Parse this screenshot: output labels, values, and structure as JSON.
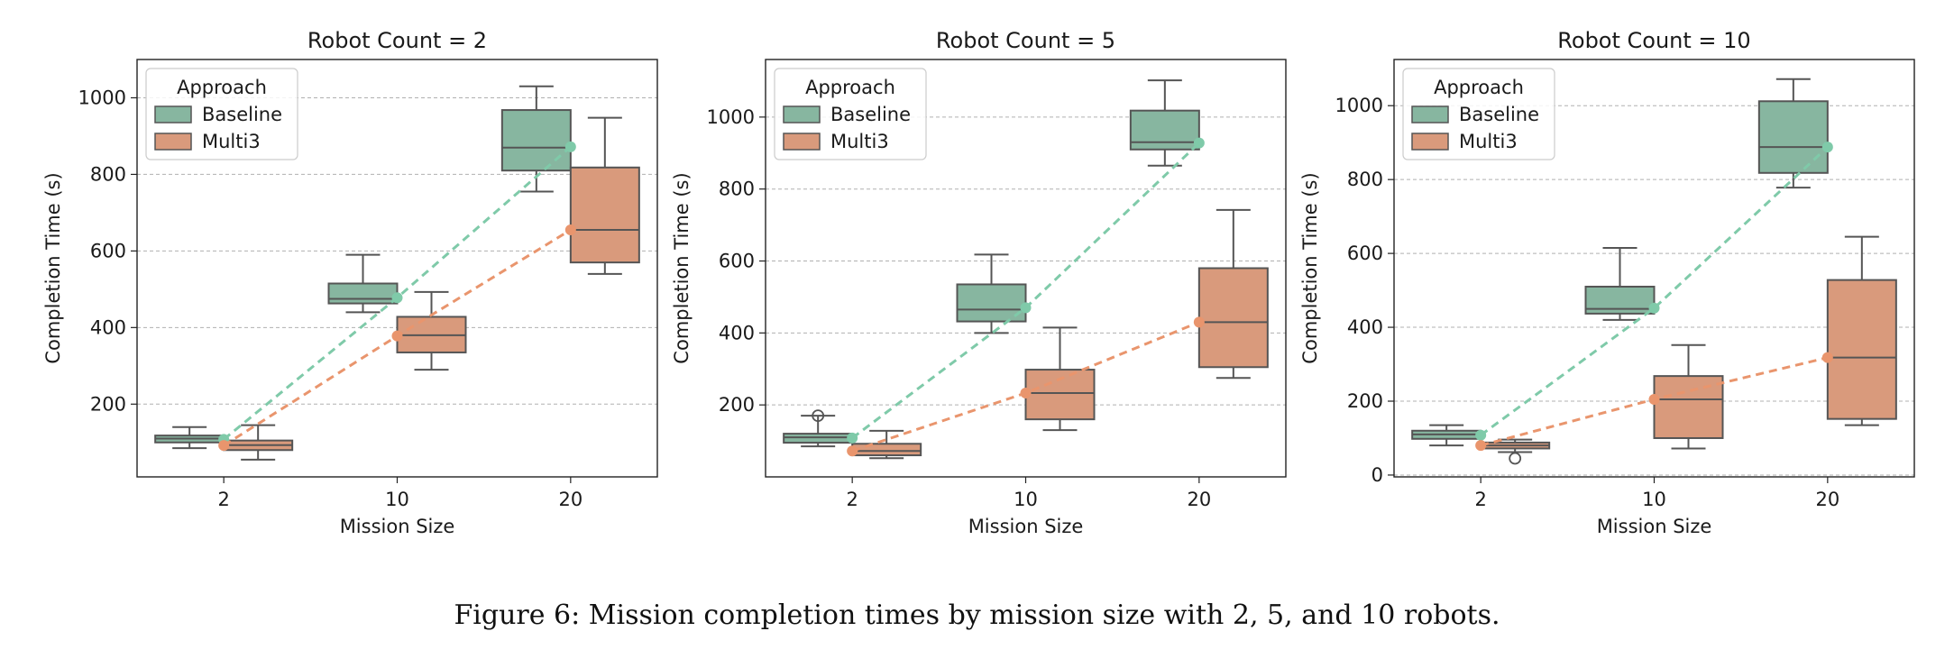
{
  "figure": {
    "caption": "Figure 6: Mission completion times by mission size with 2, 5, and 10 robots."
  },
  "colors": {
    "Baseline": "#87b6a0",
    "Multi3": "#d99a7c",
    "Baseline_line": "#7fcaa9",
    "Multi3_line": "#e9956d",
    "box_edge": "#555555",
    "grid": "#b0b0b0"
  },
  "chart_data": [
    {
      "type": "box",
      "title": "Robot Count = 2",
      "xlabel": "Mission Size",
      "ylabel": "Completion Time (s)",
      "categories": [
        "2",
        "10",
        "20"
      ],
      "ylim": [
        10,
        1100
      ],
      "yticks": [
        200,
        400,
        600,
        800,
        1000
      ],
      "grid": "y",
      "legend": {
        "title": "Approach",
        "placement": "top-left"
      },
      "series": [
        {
          "name": "Baseline",
          "boxes": [
            {
              "whislo": 85,
              "q1": 100,
              "med": 110,
              "q3": 118,
              "whishi": 140,
              "fliers": []
            },
            {
              "whislo": 440,
              "q1": 463,
              "med": 475,
              "q3": 515,
              "whishi": 590,
              "fliers": []
            },
            {
              "whislo": 755,
              "q1": 810,
              "med": 870,
              "q3": 968,
              "whishi": 1030,
              "fliers": []
            }
          ],
          "means": [
            108,
            478,
            872
          ]
        },
        {
          "name": "Multi3",
          "boxes": [
            {
              "whislo": 55,
              "q1": 80,
              "med": 93,
              "q3": 105,
              "whishi": 145,
              "fliers": []
            },
            {
              "whislo": 290,
              "q1": 335,
              "med": 380,
              "q3": 428,
              "whishi": 493,
              "fliers": []
            },
            {
              "whislo": 540,
              "q1": 570,
              "med": 655,
              "q3": 818,
              "whishi": 948,
              "fliers": []
            }
          ],
          "means": [
            92,
            378,
            655
          ]
        }
      ]
    },
    {
      "type": "box",
      "title": "Robot Count = 5",
      "xlabel": "Mission Size",
      "ylabel": "Completion Time (s)",
      "categories": [
        "2",
        "10",
        "20"
      ],
      "ylim": [
        0,
        1160
      ],
      "yticks": [
        200,
        400,
        600,
        800,
        1000
      ],
      "grid": "y",
      "legend": {
        "title": "Approach",
        "placement": "top-left"
      },
      "series": [
        {
          "name": "Baseline",
          "boxes": [
            {
              "whislo": 85,
              "q1": 95,
              "med": 110,
              "q3": 120,
              "whishi": 170,
              "fliers": [
                170
              ]
            },
            {
              "whislo": 400,
              "q1": 432,
              "med": 465,
              "q3": 535,
              "whishi": 618,
              "fliers": []
            },
            {
              "whislo": 865,
              "q1": 910,
              "med": 930,
              "q3": 1018,
              "whishi": 1102,
              "fliers": []
            }
          ],
          "means": [
            108,
            470,
            928
          ]
        },
        {
          "name": "Multi3",
          "boxes": [
            {
              "whislo": 52,
              "q1": 60,
              "med": 72,
              "q3": 92,
              "whishi": 128,
              "fliers": []
            },
            {
              "whislo": 130,
              "q1": 160,
              "med": 233,
              "q3": 298,
              "whishi": 415,
              "fliers": []
            },
            {
              "whislo": 275,
              "q1": 305,
              "med": 430,
              "q3": 580,
              "whishi": 742,
              "fliers": []
            }
          ],
          "means": [
            72,
            233,
            430
          ]
        }
      ]
    },
    {
      "type": "box",
      "title": "Robot Count = 10",
      "xlabel": "Mission Size",
      "ylabel": "Completion Time (s)",
      "categories": [
        "2",
        "10",
        "20"
      ],
      "ylim": [
        -5,
        1125
      ],
      "yticks": [
        0,
        200,
        400,
        600,
        800,
        1000
      ],
      "grid": "y",
      "legend": {
        "title": "Approach",
        "placement": "top-left"
      },
      "series": [
        {
          "name": "Baseline",
          "boxes": [
            {
              "whislo": 80,
              "q1": 98,
              "med": 110,
              "q3": 120,
              "whishi": 135,
              "fliers": []
            },
            {
              "whislo": 420,
              "q1": 437,
              "med": 450,
              "q3": 510,
              "whishi": 615,
              "fliers": []
            },
            {
              "whislo": 778,
              "q1": 818,
              "med": 888,
              "q3": 1012,
              "whishi": 1072,
              "fliers": []
            }
          ],
          "means": [
            108,
            452,
            888
          ]
        },
        {
          "name": "Multi3",
          "boxes": [
            {
              "whislo": 62,
              "q1": 72,
              "med": 80,
              "q3": 88,
              "whishi": 96,
              "fliers": [
                45
              ]
            },
            {
              "whislo": 72,
              "q1": 100,
              "med": 205,
              "q3": 268,
              "whishi": 352,
              "fliers": []
            },
            {
              "whislo": 135,
              "q1": 152,
              "med": 318,
              "q3": 528,
              "whishi": 645,
              "fliers": []
            }
          ],
          "means": [
            80,
            205,
            318
          ]
        }
      ]
    }
  ]
}
